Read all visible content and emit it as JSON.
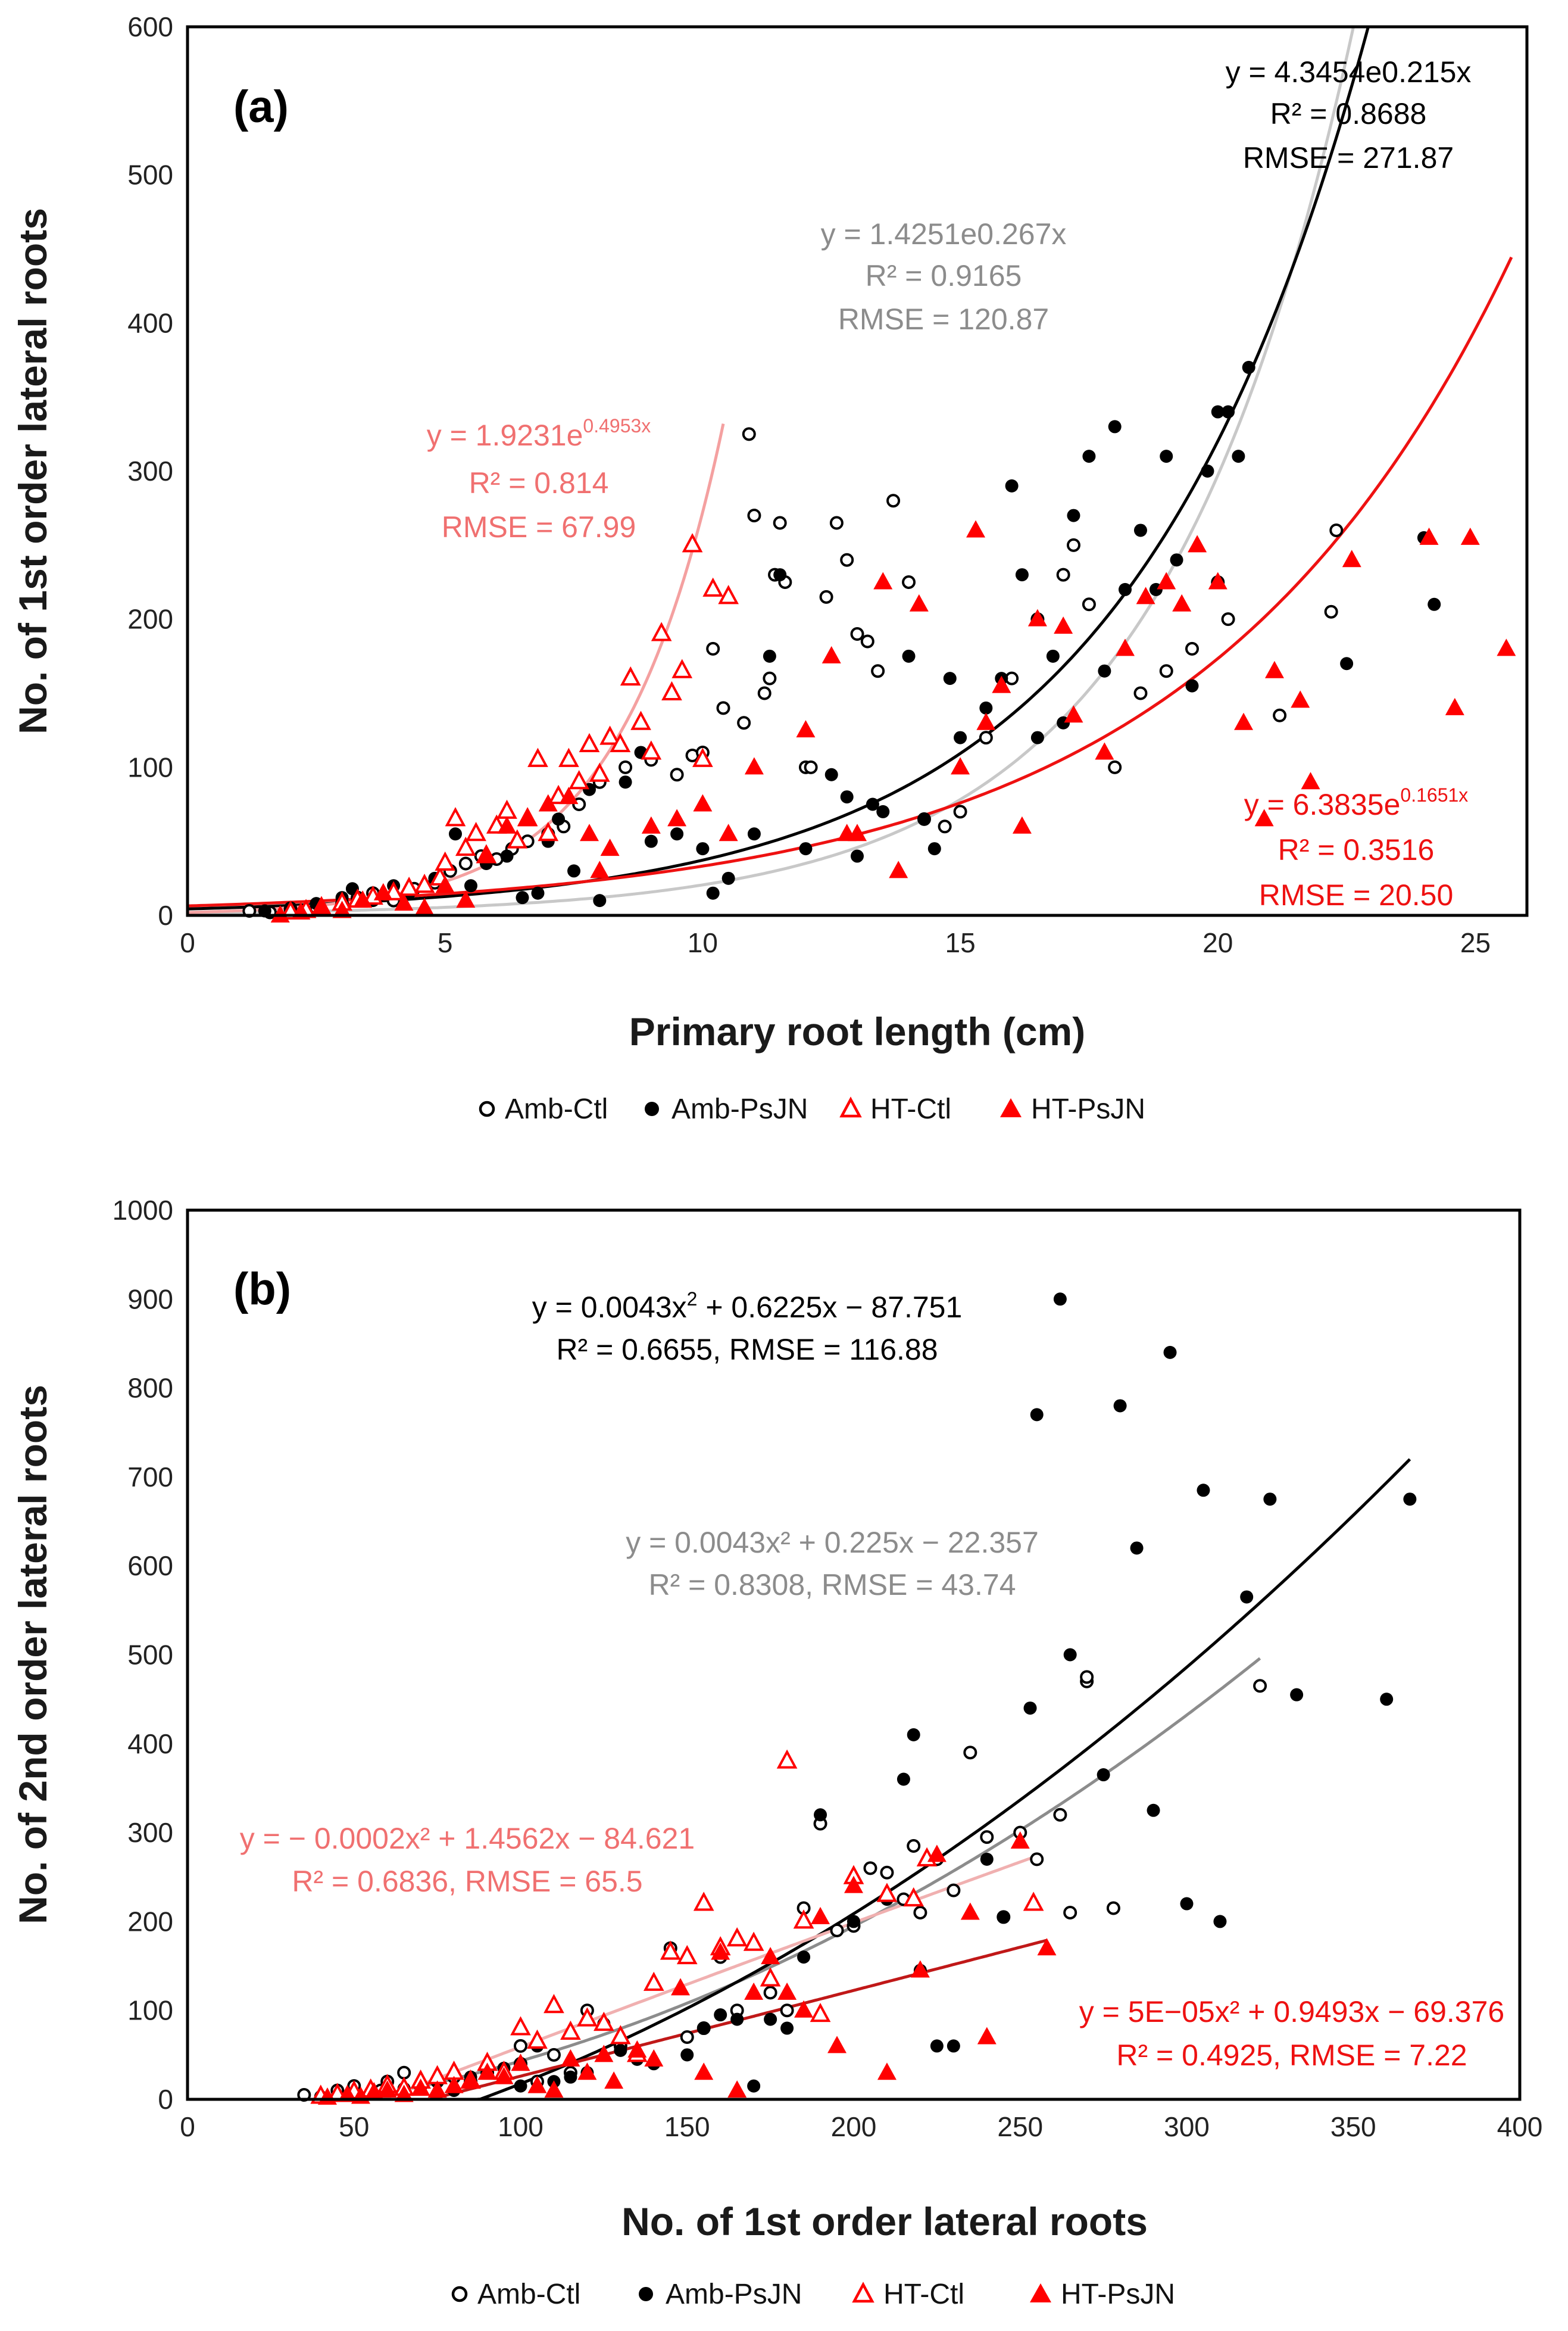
{
  "colors": {
    "amb_ctl": "#000000",
    "amb_psjn": "#000000",
    "ht_ctl": "#ff0000",
    "ht_psjn": "#ff0000",
    "fit_amb_ctl": "#c8c8c8",
    "fit_amb_psjn": "#000000",
    "fit_ht_ctl": "#f4a0a0",
    "fit_ht_psjn": "#ee1111",
    "eq_gray": "#8c8c8c",
    "eq_pink": "#f07070",
    "eq_red": "#ee1111",
    "eq_black": "#000000",
    "b_fit_amb_ctl": "#8c8c8c",
    "b_fit_amb_psjn": "#000000",
    "b_fit_ht_ctl": "#f0b0b0",
    "b_fit_ht_psjn": "#c01818"
  },
  "legend": {
    "amb_ctl": "Amb-Ctl",
    "amb_psjn": "Amb-PsJN",
    "ht_ctl": "HT-Ctl",
    "ht_psjn": "HT-PsJN"
  },
  "chart_data": [
    {
      "type": "scatter",
      "panel_label": "(a)",
      "xlabel": "Primary root length (cm)",
      "ylabel": "No. of 1st order lateral roots",
      "xlim": [
        0,
        26
      ],
      "ylim": [
        0,
        600
      ],
      "xticks": [
        "0",
        "5",
        "10",
        "15",
        "20",
        "25"
      ],
      "xtick_values": [
        0,
        5,
        10,
        15,
        20,
        25
      ],
      "yticks": [
        "0",
        "100",
        "200",
        "300",
        "400",
        "500",
        "600"
      ],
      "ytick_values": [
        0,
        100,
        200,
        300,
        400,
        500,
        600
      ],
      "equations": {
        "amb_psjn": {
          "eq": "y = 4.3454e0.215x",
          "r2": "R² = 0.8688",
          "rmse": "RMSE = 271.87"
        },
        "amb_ctl": {
          "eq": "y = 1.4251e0.267x",
          "r2": "R² = 0.9165",
          "rmse": "RMSE = 120.87"
        },
        "ht_ctl": {
          "eq_base": "y = 1.9231e",
          "eq_sup": "0.4953x",
          "r2": "R² = 0.814",
          "rmse": "RMSE = 67.99"
        },
        "ht_psjn": {
          "eq_base": "y = 6.3835e",
          "eq_sup": "0.1651x",
          "r2": "R² = 0.3516",
          "rmse": "RMSE = 20.50"
        }
      },
      "fits": [
        {
          "series": "amb_ctl",
          "kind": "exp",
          "a": 1.4251,
          "b": 0.267,
          "xmin": 0,
          "xmax": 26
        },
        {
          "series": "amb_psjn",
          "kind": "exp",
          "a": 4.3454,
          "b": 0.215,
          "xmin": 0,
          "xmax": 26
        },
        {
          "series": "ht_ctl",
          "kind": "exp",
          "a": 1.9231,
          "b": 0.4953,
          "xmin": 0,
          "xmax": 10.4
        },
        {
          "series": "ht_psjn",
          "kind": "exp",
          "a": 6.3835,
          "b": 0.1651,
          "xmin": 0,
          "xmax": 25.7
        }
      ],
      "series": [
        {
          "name": "Amb-Ctl",
          "key": "amb_ctl",
          "x": [
            1.2,
            1.6,
            2.0,
            2.5,
            3.0,
            3.3,
            3.6,
            4.0,
            4.4,
            4.8,
            5.1,
            5.4,
            5.7,
            6.0,
            6.3,
            6.6,
            7.0,
            7.3,
            7.6,
            8.0,
            8.5,
            9.0,
            9.5,
            9.8,
            10.0,
            10.2,
            10.4,
            10.8,
            10.9,
            11.0,
            11.2,
            11.3,
            11.4,
            11.5,
            11.6,
            12.0,
            12.1,
            12.4,
            12.6,
            12.8,
            13.0,
            13.2,
            13.4,
            13.7,
            14.0,
            14.3,
            14.7,
            15.0,
            15.5,
            16.0,
            16.5,
            17.0,
            17.2,
            17.5,
            18.0,
            18.5,
            19.0,
            19.5,
            20.0,
            20.2,
            21.2,
            22.2,
            22.3
          ],
          "y": [
            3,
            2,
            4,
            5,
            8,
            12,
            15,
            10,
            18,
            22,
            30,
            35,
            40,
            38,
            45,
            50,
            55,
            60,
            75,
            90,
            100,
            105,
            95,
            108,
            110,
            180,
            140,
            130,
            325,
            270,
            150,
            160,
            230,
            265,
            225,
            100,
            100,
            215,
            265,
            240,
            190,
            185,
            165,
            280,
            225,
            65,
            60,
            70,
            120,
            160,
            200,
            230,
            250,
            210,
            100,
            150,
            165,
            180,
            225,
            200,
            135,
            205,
            260
          ]
        },
        {
          "name": "Amb-PsJN",
          "key": "amb_psjn",
          "x": [
            1.5,
            2.0,
            2.5,
            3.0,
            3.2,
            3.6,
            4.0,
            4.3,
            4.8,
            5.2,
            5.5,
            5.8,
            6.2,
            6.5,
            6.8,
            7.0,
            7.2,
            7.5,
            7.8,
            8.0,
            8.5,
            8.8,
            9.0,
            9.5,
            10.0,
            10.2,
            10.5,
            11.0,
            11.3,
            11.5,
            12.0,
            12.5,
            12.8,
            13.0,
            13.3,
            13.5,
            14.0,
            14.3,
            14.5,
            14.8,
            15.0,
            15.5,
            15.8,
            16.0,
            16.2,
            16.5,
            16.8,
            17.0,
            17.2,
            17.5,
            17.8,
            18.0,
            18.2,
            18.5,
            18.8,
            19.0,
            19.2,
            19.5,
            19.8,
            20.0,
            20.2,
            20.4,
            20.6,
            22.5,
            24.2,
            24.0
          ],
          "y": [
            3,
            5,
            8,
            12,
            18,
            10,
            20,
            15,
            25,
            55,
            20,
            35,
            40,
            12,
            15,
            50,
            65,
            30,
            85,
            10,
            90,
            110,
            50,
            55,
            45,
            15,
            25,
            55,
            175,
            230,
            45,
            95,
            80,
            40,
            75,
            70,
            175,
            65,
            45,
            160,
            120,
            140,
            160,
            290,
            230,
            120,
            175,
            130,
            270,
            310,
            165,
            330,
            220,
            260,
            220,
            310,
            240,
            155,
            300,
            340,
            340,
            310,
            370,
            170,
            210,
            255
          ]
        },
        {
          "name": "HT-Ctl",
          "key": "ht_ctl",
          "x": [
            2.0,
            2.3,
            2.6,
            3.0,
            3.3,
            3.6,
            4.0,
            4.3,
            4.6,
            4.9,
            5.0,
            5.2,
            5.4,
            5.6,
            5.8,
            6.0,
            6.2,
            6.4,
            6.6,
            6.8,
            7.0,
            7.2,
            7.4,
            7.6,
            7.8,
            8.0,
            8.2,
            8.4,
            8.6,
            8.8,
            9.0,
            9.2,
            9.4,
            9.6,
            9.8,
            10.0,
            10.2,
            10.5
          ],
          "y": [
            2,
            3,
            5,
            8,
            10,
            12,
            15,
            18,
            20,
            25,
            35,
            65,
            45,
            55,
            40,
            60,
            70,
            50,
            65,
            105,
            55,
            80,
            105,
            90,
            115,
            95,
            120,
            115,
            160,
            130,
            110,
            190,
            150,
            165,
            250,
            105,
            220,
            215
          ]
        },
        {
          "name": "HT-PsJN",
          "key": "ht_psjn",
          "x": [
            1.8,
            2.2,
            2.6,
            3.0,
            3.4,
            3.8,
            4.2,
            4.6,
            5.0,
            5.4,
            5.8,
            6.2,
            6.6,
            7.0,
            7.4,
            7.8,
            8.0,
            8.2,
            9.0,
            9.5,
            10.0,
            10.5,
            11.0,
            12.0,
            12.5,
            12.8,
            13.0,
            13.5,
            13.8,
            14.2,
            15.0,
            15.3,
            15.5,
            15.8,
            16.2,
            16.5,
            17.0,
            17.2,
            17.8,
            18.2,
            18.6,
            19.0,
            19.3,
            19.6,
            20.0,
            20.5,
            20.9,
            21.1,
            21.6,
            21.8,
            22.6,
            24.1,
            24.6,
            24.9,
            25.6
          ],
          "y": [
            0,
            2,
            5,
            3,
            10,
            15,
            8,
            5,
            20,
            10,
            40,
            60,
            65,
            75,
            80,
            55,
            30,
            45,
            60,
            65,
            75,
            55,
            100,
            125,
            175,
            55,
            55,
            225,
            30,
            210,
            100,
            260,
            130,
            155,
            60,
            200,
            195,
            135,
            110,
            180,
            215,
            225,
            210,
            250,
            225,
            130,
            65,
            165,
            145,
            90,
            240,
            255,
            140,
            255,
            180
          ]
        }
      ]
    },
    {
      "type": "scatter",
      "panel_label": "(b)",
      "xlabel": "No. of 1st order lateral roots",
      "ylabel": "No. of 2nd order lateral roots",
      "xlim": [
        0,
        400
      ],
      "ylim": [
        0,
        1000
      ],
      "xticks": [
        "0",
        "50",
        "100",
        "150",
        "200",
        "250",
        "300",
        "350",
        "400"
      ],
      "xtick_values": [
        0,
        50,
        100,
        150,
        200,
        250,
        300,
        350,
        400
      ],
      "yticks": [
        "0",
        "100",
        "200",
        "300",
        "400",
        "500",
        "600",
        "700",
        "800",
        "900",
        "1000"
      ],
      "ytick_values": [
        0,
        100,
        200,
        300,
        400,
        500,
        600,
        700,
        800,
        900,
        1000
      ],
      "equations": {
        "amb_psjn": {
          "eq_base": "y = 0.0043x",
          "eq_sup": "2",
          "eq_tail": " + 0.6225x − 87.751",
          "stats": "R² = 0.6655,   RMSE = 116.88"
        },
        "amb_ctl": {
          "eq": "y = 0.0043x² + 0.225x − 22.357",
          "stats": "R² = 0.8308,   RMSE = 43.74"
        },
        "ht_ctl": {
          "eq": "y = − 0.0002x² + 1.4562x − 84.621",
          "stats": "R² = 0.6836,   RMSE =  65.5"
        },
        "ht_psjn": {
          "eq": "y = 5E−05x² + 0.9493x − 69.376",
          "stats": "R² = 0.4925,   RMSE = 7.22"
        }
      },
      "fits": [
        {
          "series": "amb_ctl",
          "kind": "poly",
          "c": [
            -22.357,
            0.225,
            0.0043
          ],
          "xmin": 40,
          "xmax": 322
        },
        {
          "series": "amb_psjn",
          "kind": "poly",
          "c": [
            -87.751,
            0.6225,
            0.0043
          ],
          "xmin": 40,
          "xmax": 367
        },
        {
          "series": "ht_ctl",
          "kind": "poly",
          "c": [
            -84.621,
            1.4562,
            -0.0002
          ],
          "xmin": 40,
          "xmax": 254
        },
        {
          "series": "ht_psjn",
          "kind": "poly",
          "c": [
            -69.376,
            0.9493,
            5e-05
          ],
          "xmin": 40,
          "xmax": 258
        }
      ],
      "series": [
        {
          "name": "Amb-Ctl",
          "key": "amb_ctl",
          "x": [
            35,
            45,
            50,
            58,
            60,
            65,
            70,
            75,
            80,
            85,
            90,
            95,
            100,
            100,
            105,
            110,
            115,
            120,
            130,
            135,
            145,
            150,
            155,
            160,
            165,
            175,
            180,
            185,
            190,
            195,
            200,
            205,
            210,
            215,
            218,
            220,
            225,
            230,
            235,
            240,
            245,
            250,
            255,
            262,
            265,
            270,
            270,
            278,
            322
          ],
          "y": [
            5,
            10,
            15,
            10,
            20,
            30,
            15,
            20,
            25,
            20,
            30,
            25,
            40,
            60,
            20,
            50,
            30,
            100,
            60,
            50,
            170,
            70,
            80,
            160,
            100,
            120,
            100,
            215,
            310,
            190,
            195,
            260,
            255,
            225,
            285,
            210,
            270,
            235,
            390,
            295,
            205,
            300,
            270,
            320,
            210,
            470,
            475,
            215,
            465
          ]
        },
        {
          "name": "Amb-PsJN",
          "key": "amb_psjn",
          "x": [
            40,
            50,
            55,
            60,
            65,
            70,
            75,
            80,
            85,
            90,
            95,
            100,
            105,
            110,
            115,
            120,
            125,
            130,
            135,
            140,
            150,
            155,
            160,
            165,
            170,
            175,
            180,
            185,
            190,
            200,
            210,
            215,
            218,
            220,
            225,
            230,
            240,
            245,
            253,
            255,
            262,
            265,
            275,
            280,
            285,
            290,
            295,
            300,
            305,
            310,
            318,
            325,
            333,
            360,
            367
          ],
          "y": [
            3,
            5,
            8,
            10,
            12,
            15,
            20,
            10,
            25,
            30,
            35,
            15,
            60,
            20,
            25,
            30,
            85,
            55,
            45,
            40,
            50,
            80,
            95,
            90,
            15,
            90,
            80,
            160,
            320,
            200,
            225,
            360,
            410,
            145,
            60,
            60,
            270,
            205,
            440,
            770,
            900,
            500,
            365,
            780,
            620,
            325,
            840,
            220,
            685,
            200,
            565,
            675,
            455,
            450,
            675
          ]
        },
        {
          "name": "HT-Ctl",
          "key": "ht_ctl",
          "x": [
            40,
            45,
            50,
            55,
            60,
            65,
            70,
            75,
            80,
            85,
            90,
            95,
            100,
            105,
            110,
            115,
            120,
            125,
            130,
            135,
            140,
            145,
            150,
            155,
            160,
            165,
            170,
            175,
            180,
            185,
            190,
            200,
            210,
            218,
            222,
            254
          ],
          "y": [
            3,
            5,
            8,
            10,
            15,
            12,
            20,
            25,
            30,
            20,
            40,
            30,
            80,
            65,
            105,
            75,
            90,
            85,
            70,
            50,
            130,
            165,
            160,
            220,
            170,
            180,
            175,
            135,
            380,
            200,
            95,
            250,
            230,
            225,
            270,
            220
          ]
        },
        {
          "name": "HT-PsJN",
          "key": "ht_psjn",
          "x": [
            42,
            48,
            52,
            56,
            60,
            65,
            70,
            75,
            80,
            85,
            90,
            95,
            100,
            105,
            110,
            115,
            120,
            125,
            128,
            135,
            140,
            148,
            155,
            160,
            165,
            170,
            175,
            180,
            185,
            190,
            195,
            200,
            210,
            220,
            225,
            235,
            240,
            250,
            258
          ],
          "y": [
            2,
            5,
            3,
            8,
            10,
            5,
            12,
            10,
            15,
            20,
            30,
            25,
            40,
            15,
            10,
            45,
            30,
            50,
            20,
            55,
            45,
            125,
            30,
            165,
            10,
            120,
            160,
            120,
            100,
            205,
            60,
            240,
            30,
            145,
            275,
            210,
            70,
            290,
            170
          ]
        }
      ]
    }
  ]
}
